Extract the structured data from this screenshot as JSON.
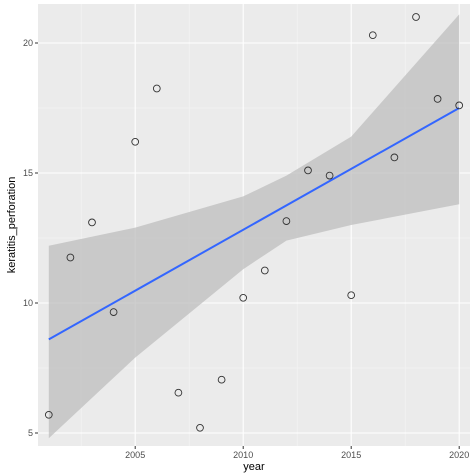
{
  "chart_data": {
    "type": "scatter",
    "xlabel": "year",
    "ylabel": "keratitis_perforation",
    "xlim": [
      2000.5,
      2020.5
    ],
    "ylim": [
      4.5,
      21.5
    ],
    "x_ticks": [
      2005,
      2010,
      2015,
      2020
    ],
    "y_ticks": [
      5,
      10,
      15,
      20
    ],
    "grid": true,
    "points": [
      {
        "x": 2001,
        "y": 5.7
      },
      {
        "x": 2002,
        "y": 11.75
      },
      {
        "x": 2003,
        "y": 13.1
      },
      {
        "x": 2004,
        "y": 9.65
      },
      {
        "x": 2005,
        "y": 16.2
      },
      {
        "x": 2006,
        "y": 18.25
      },
      {
        "x": 2007,
        "y": 6.55
      },
      {
        "x": 2008,
        "y": 5.2
      },
      {
        "x": 2009,
        "y": 7.05
      },
      {
        "x": 2010,
        "y": 10.2
      },
      {
        "x": 2011,
        "y": 11.25
      },
      {
        "x": 2012,
        "y": 13.15
      },
      {
        "x": 2013,
        "y": 15.1
      },
      {
        "x": 2014,
        "y": 14.9
      },
      {
        "x": 2015,
        "y": 10.3
      },
      {
        "x": 2016,
        "y": 20.3
      },
      {
        "x": 2017,
        "y": 15.6
      },
      {
        "x": 2018,
        "y": 21.0
      },
      {
        "x": 2019,
        "y": 17.85
      },
      {
        "x": 2020,
        "y": 17.6
      }
    ],
    "trend_line": {
      "type": "linear",
      "x": [
        2001,
        2020
      ],
      "y": [
        8.6,
        17.5
      ]
    },
    "confidence_band": {
      "x": [
        2001,
        2005,
        2010,
        2012,
        2015,
        2020
      ],
      "upper": [
        12.2,
        12.9,
        14.1,
        14.9,
        16.4,
        21.1
      ],
      "lower": [
        4.8,
        7.9,
        11.3,
        12.4,
        13.0,
        13.8
      ]
    },
    "colors": {
      "panel": "#ebebeb",
      "grid_major": "#ffffff",
      "trend": "#3366ff",
      "band": "#bebebe",
      "point": "#333333"
    }
  }
}
